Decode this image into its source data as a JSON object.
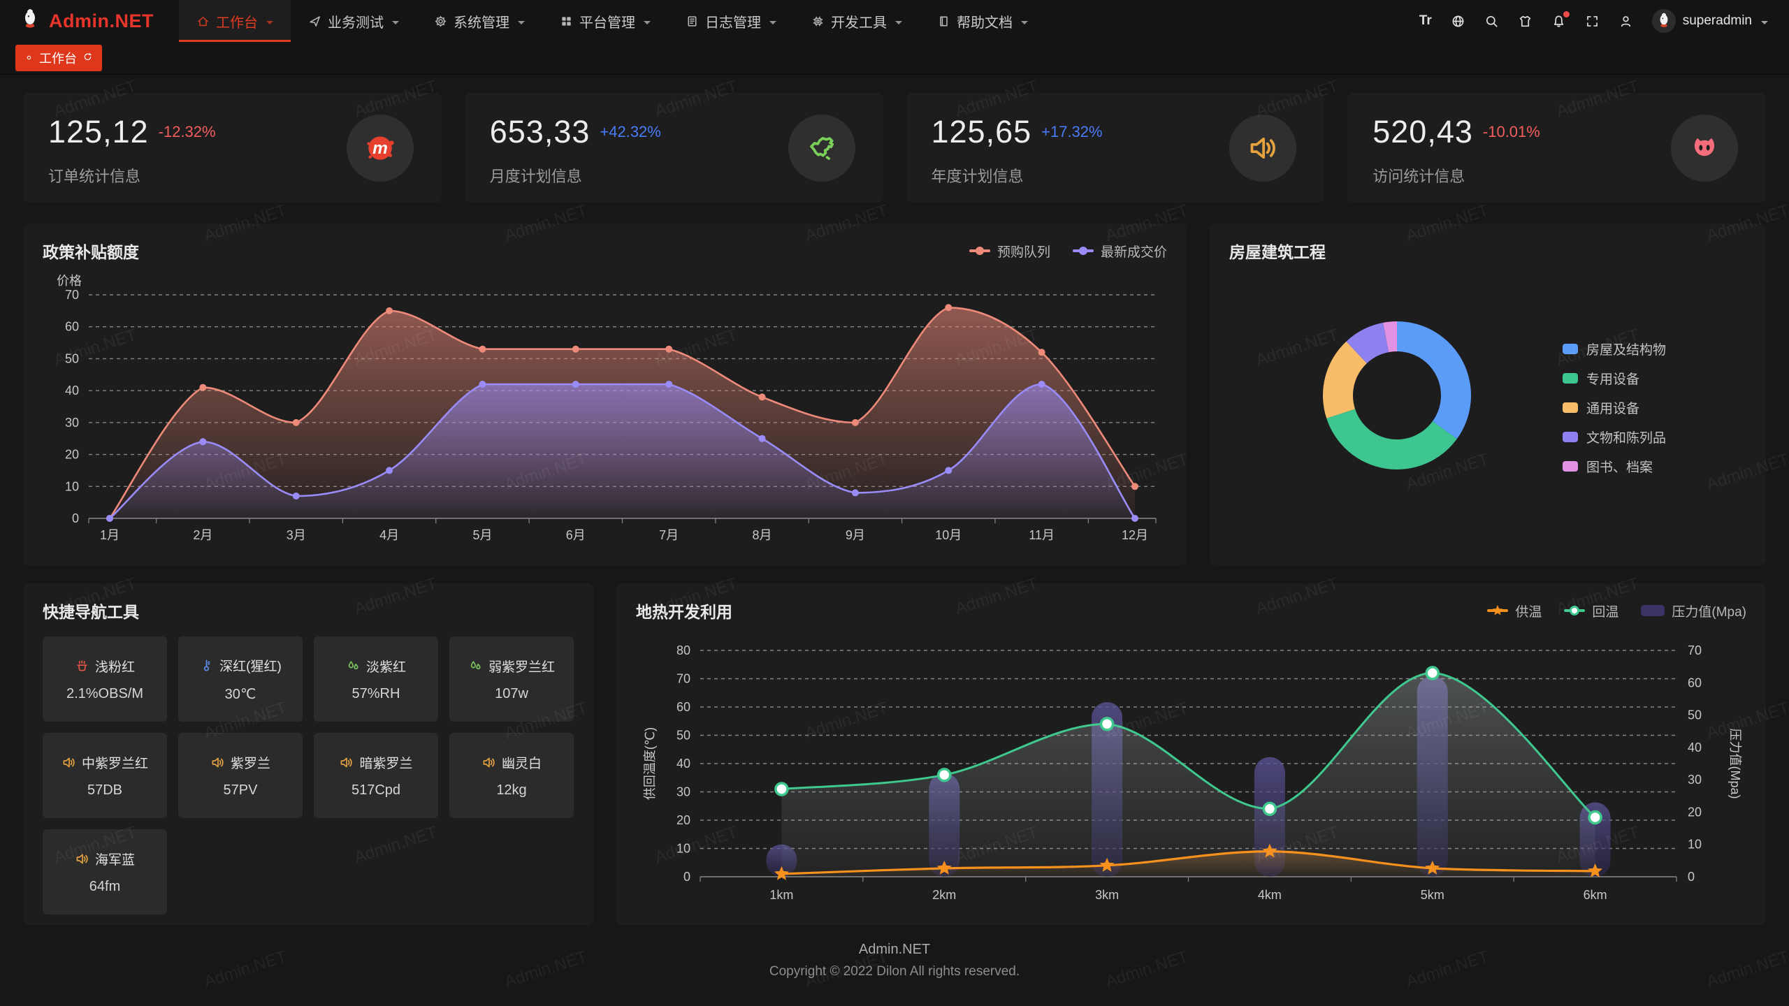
{
  "watermark": "Admin.NET",
  "colors": {
    "accent": "#df3a20",
    "delta_up": "#4a7bf7",
    "delta_down": "#f25e5e"
  },
  "navbar": {
    "logo_text": "Admin.NET",
    "menu": [
      {
        "label": "工作台",
        "icon": "home-icon",
        "active": true
      },
      {
        "label": "业务测试",
        "icon": "cursor-icon"
      },
      {
        "label": "系统管理",
        "icon": "gear-icon"
      },
      {
        "label": "平台管理",
        "icon": "grid-icon"
      },
      {
        "label": "日志管理",
        "icon": "log-icon"
      },
      {
        "label": "开发工具",
        "icon": "chip-icon"
      },
      {
        "label": "帮助文档",
        "icon": "doc-icon"
      }
    ],
    "toolbar": [
      {
        "icon": "font-size-icon",
        "text": "Tr"
      },
      {
        "icon": "language-icon"
      },
      {
        "icon": "search-icon"
      },
      {
        "icon": "theme-icon"
      },
      {
        "icon": "notification-bell-icon",
        "badge": true
      },
      {
        "icon": "fullscreen-icon"
      },
      {
        "icon": "user-icon"
      }
    ],
    "user": "superadmin"
  },
  "tabbar": {
    "active_tab": "工作台"
  },
  "stat_cards": [
    {
      "value": "125,12",
      "delta": "-12.32%",
      "trend": "down",
      "label": "订单统计信息",
      "icon": "meetup-splat-icon",
      "icon_color": "#e8402e"
    },
    {
      "value": "653,33",
      "delta": "+42.32%",
      "trend": "up",
      "label": "月度计划信息",
      "icon": "china-map-icon",
      "icon_color": "#7ad058"
    },
    {
      "value": "125,65",
      "delta": "+17.32%",
      "trend": "up",
      "label": "年度计划信息",
      "icon": "speaker-icon",
      "icon_color": "#e6a23c"
    },
    {
      "value": "520,43",
      "delta": "-10.01%",
      "trend": "down",
      "label": "访问统计信息",
      "icon": "cat-icon",
      "icon_color": "#f56c7c"
    }
  ],
  "quick_nav": {
    "title": "快捷导航工具",
    "items": [
      {
        "name": "浅粉红",
        "value": "2.1%OBS/M",
        "icon": "fire-icon",
        "icon_color": "#e05548"
      },
      {
        "name": "深红(猩红)",
        "value": "30℃",
        "icon": "thermometer-icon",
        "icon_color": "#5f8ef2"
      },
      {
        "name": "淡紫红",
        "value": "57%RH",
        "icon": "humidity-icon",
        "icon_color": "#7ac35f"
      },
      {
        "name": "弱紫罗兰红",
        "value": "107w",
        "icon": "humidity-icon",
        "icon_color": "#7ac35f"
      },
      {
        "name": "中紫罗兰红",
        "value": "57DB",
        "icon": "speaker-icon",
        "icon_color": "#e3a23f"
      },
      {
        "name": "紫罗兰",
        "value": "57PV",
        "icon": "speaker-icon",
        "icon_color": "#e3a23f"
      },
      {
        "name": "暗紫罗兰",
        "value": "517Cpd",
        "icon": "speaker-icon",
        "icon_color": "#e3a23f"
      },
      {
        "name": "幽灵白",
        "value": "12kg",
        "icon": "speaker-icon",
        "icon_color": "#e3a23f"
      },
      {
        "name": "海军蓝",
        "value": "64fm",
        "icon": "speaker-icon",
        "icon_color": "#e3a23f"
      }
    ]
  },
  "footer": {
    "line1": "Admin.NET",
    "line2": "Copyright © 2022 Dilon All rights reserved."
  },
  "chart_data": [
    {
      "id": "policy",
      "type": "line",
      "title": "政策补贴额度",
      "ylabel": "价格",
      "ylim": [
        0,
        70
      ],
      "ytick_interval": 10,
      "grid": "dashed",
      "legend_position": "top-right",
      "categories": [
        "1月",
        "2月",
        "3月",
        "4月",
        "5月",
        "6月",
        "7月",
        "8月",
        "9月",
        "10月",
        "11月",
        "12月"
      ],
      "series": [
        {
          "name": "预购队列",
          "color": "#ee8a7a",
          "area": true,
          "values": [
            0,
            41,
            30,
            65,
            53,
            53,
            53,
            38,
            30,
            66,
            52,
            10
          ]
        },
        {
          "name": "最新成交价",
          "color": "#9a8cf8",
          "area": true,
          "values": [
            0,
            24,
            7,
            15,
            42,
            42,
            42,
            25,
            8,
            15,
            42,
            0
          ]
        }
      ]
    },
    {
      "id": "housing",
      "type": "pie",
      "title": "房屋建筑工程",
      "donut": true,
      "legend_position": "right",
      "slices": [
        {
          "label": "房屋及结构物",
          "value": 35,
          "color": "#5b9cf8"
        },
        {
          "label": "专用设备",
          "value": 35,
          "color": "#3ec690"
        },
        {
          "label": "通用设备",
          "value": 18,
          "color": "#f9bd69"
        },
        {
          "label": "文物和陈列品",
          "value": 9,
          "color": "#8d82f0"
        },
        {
          "label": "图书、档案",
          "value": 3,
          "color": "#e292e2"
        }
      ]
    },
    {
      "id": "geothermal",
      "type": "line+bar",
      "title": "地热开发利用",
      "ylabel_left": "供回温度(℃)",
      "ylabel_right": "压力值(Mpa)",
      "ylim_left": [
        0,
        80
      ],
      "ylim_right": [
        0,
        70
      ],
      "ytick_interval": 10,
      "grid": "dashed",
      "legend_position": "top-right",
      "categories": [
        "1km",
        "2km",
        "3km",
        "4km",
        "5km",
        "6km"
      ],
      "series": [
        {
          "name": "供温",
          "type": "line",
          "axis": "left",
          "color": "#f6911e",
          "marker": "star",
          "values": [
            1,
            3,
            4,
            9,
            3,
            2
          ]
        },
        {
          "name": "回温",
          "type": "line",
          "axis": "left",
          "color": "#3fc98e",
          "marker": "circle",
          "area": true,
          "values": [
            31,
            36,
            54,
            24,
            72,
            21
          ]
        },
        {
          "name": "压力值(Mpa)",
          "type": "bar",
          "axis": "right",
          "color": "#3a3464",
          "values": [
            10,
            32,
            54,
            37,
            62,
            23
          ]
        }
      ]
    }
  ]
}
